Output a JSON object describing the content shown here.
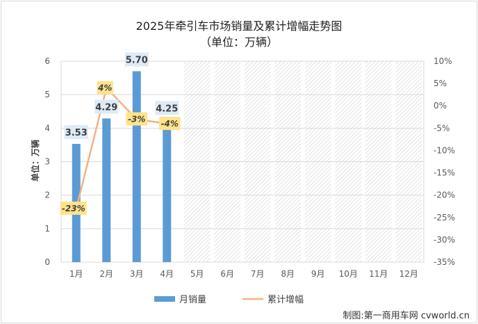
{
  "chart_data": {
    "type": "bar",
    "title": "2025年牵引车市场销量及累计增幅走势图",
    "subtitle": "（单位：万辆）",
    "ylabel": "单位：万辆",
    "categories": [
      "1月",
      "2月",
      "3月",
      "4月",
      "5月",
      "6月",
      "7月",
      "8月",
      "9月",
      "10月",
      "11月",
      "12月"
    ],
    "series": [
      {
        "name": "月销量",
        "type": "bar",
        "axis": "left",
        "color": "#5B9BD5",
        "values": [
          3.53,
          4.29,
          5.7,
          4.25,
          null,
          null,
          null,
          null,
          null,
          null,
          null,
          null
        ],
        "labels": [
          "3.53",
          "4.29",
          "5.70",
          "4.25"
        ]
      },
      {
        "name": "累计增幅",
        "type": "line",
        "axis": "right",
        "color": "#F4B183",
        "values": [
          -23,
          4,
          -3,
          -4,
          null,
          null,
          null,
          null,
          null,
          null,
          null,
          null
        ],
        "labels": [
          "-23%",
          "4%",
          "-3%",
          "-4%"
        ]
      }
    ],
    "ylim": [
      0,
      6
    ],
    "yticks": [
      "0",
      "1",
      "2",
      "3",
      "4",
      "5",
      "6"
    ],
    "y2lim": [
      -35,
      10
    ],
    "y2ticks": [
      "-35%",
      "-30%",
      "-25%",
      "-20%",
      "-15%",
      "-10%",
      "-5%",
      "0%",
      "5%",
      "10%"
    ]
  },
  "credit": "制图:第一商用车网 cvworld.cn"
}
